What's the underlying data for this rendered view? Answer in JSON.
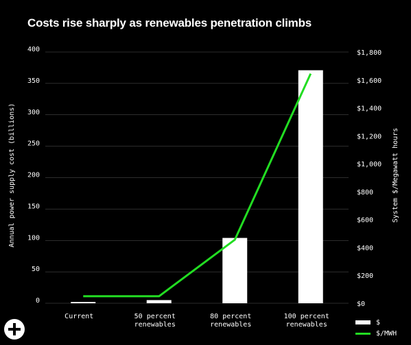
{
  "chart_data": {
    "type": "bar",
    "title": "Costs rise sharply as renewables penetration climbs",
    "categories": [
      [
        "Current"
      ],
      [
        "50 percent",
        "renewables"
      ],
      [
        "80 percent",
        "renewables"
      ],
      [
        "100 percent",
        "renewables"
      ]
    ],
    "ylabel": "Annual power supply cost (billions)",
    "y2label": "System $/Megawatt hours",
    "ylim": [
      0,
      400
    ],
    "y2lim": [
      0,
      1800
    ],
    "yticks": [
      0,
      50,
      100,
      150,
      200,
      250,
      300,
      350,
      400
    ],
    "y2ticks": [
      "$0",
      "$200",
      "$400",
      "$600",
      "$800",
      "$1,000",
      "$1,200",
      "$1,400",
      "$1,600",
      "$1,800"
    ],
    "grid": true,
    "legend_position": "bottom-right",
    "series": [
      {
        "name": "$",
        "type": "bar",
        "axis": "left",
        "color": "#ffffff",
        "values": [
          2,
          5,
          104,
          371
        ]
      },
      {
        "name": "$/MWH",
        "type": "line",
        "axis": "right",
        "color": "#22dd22",
        "values": [
          50,
          50,
          455,
          1645
        ]
      }
    ]
  },
  "ui": {
    "add_icon": "plus-circle-icon"
  }
}
